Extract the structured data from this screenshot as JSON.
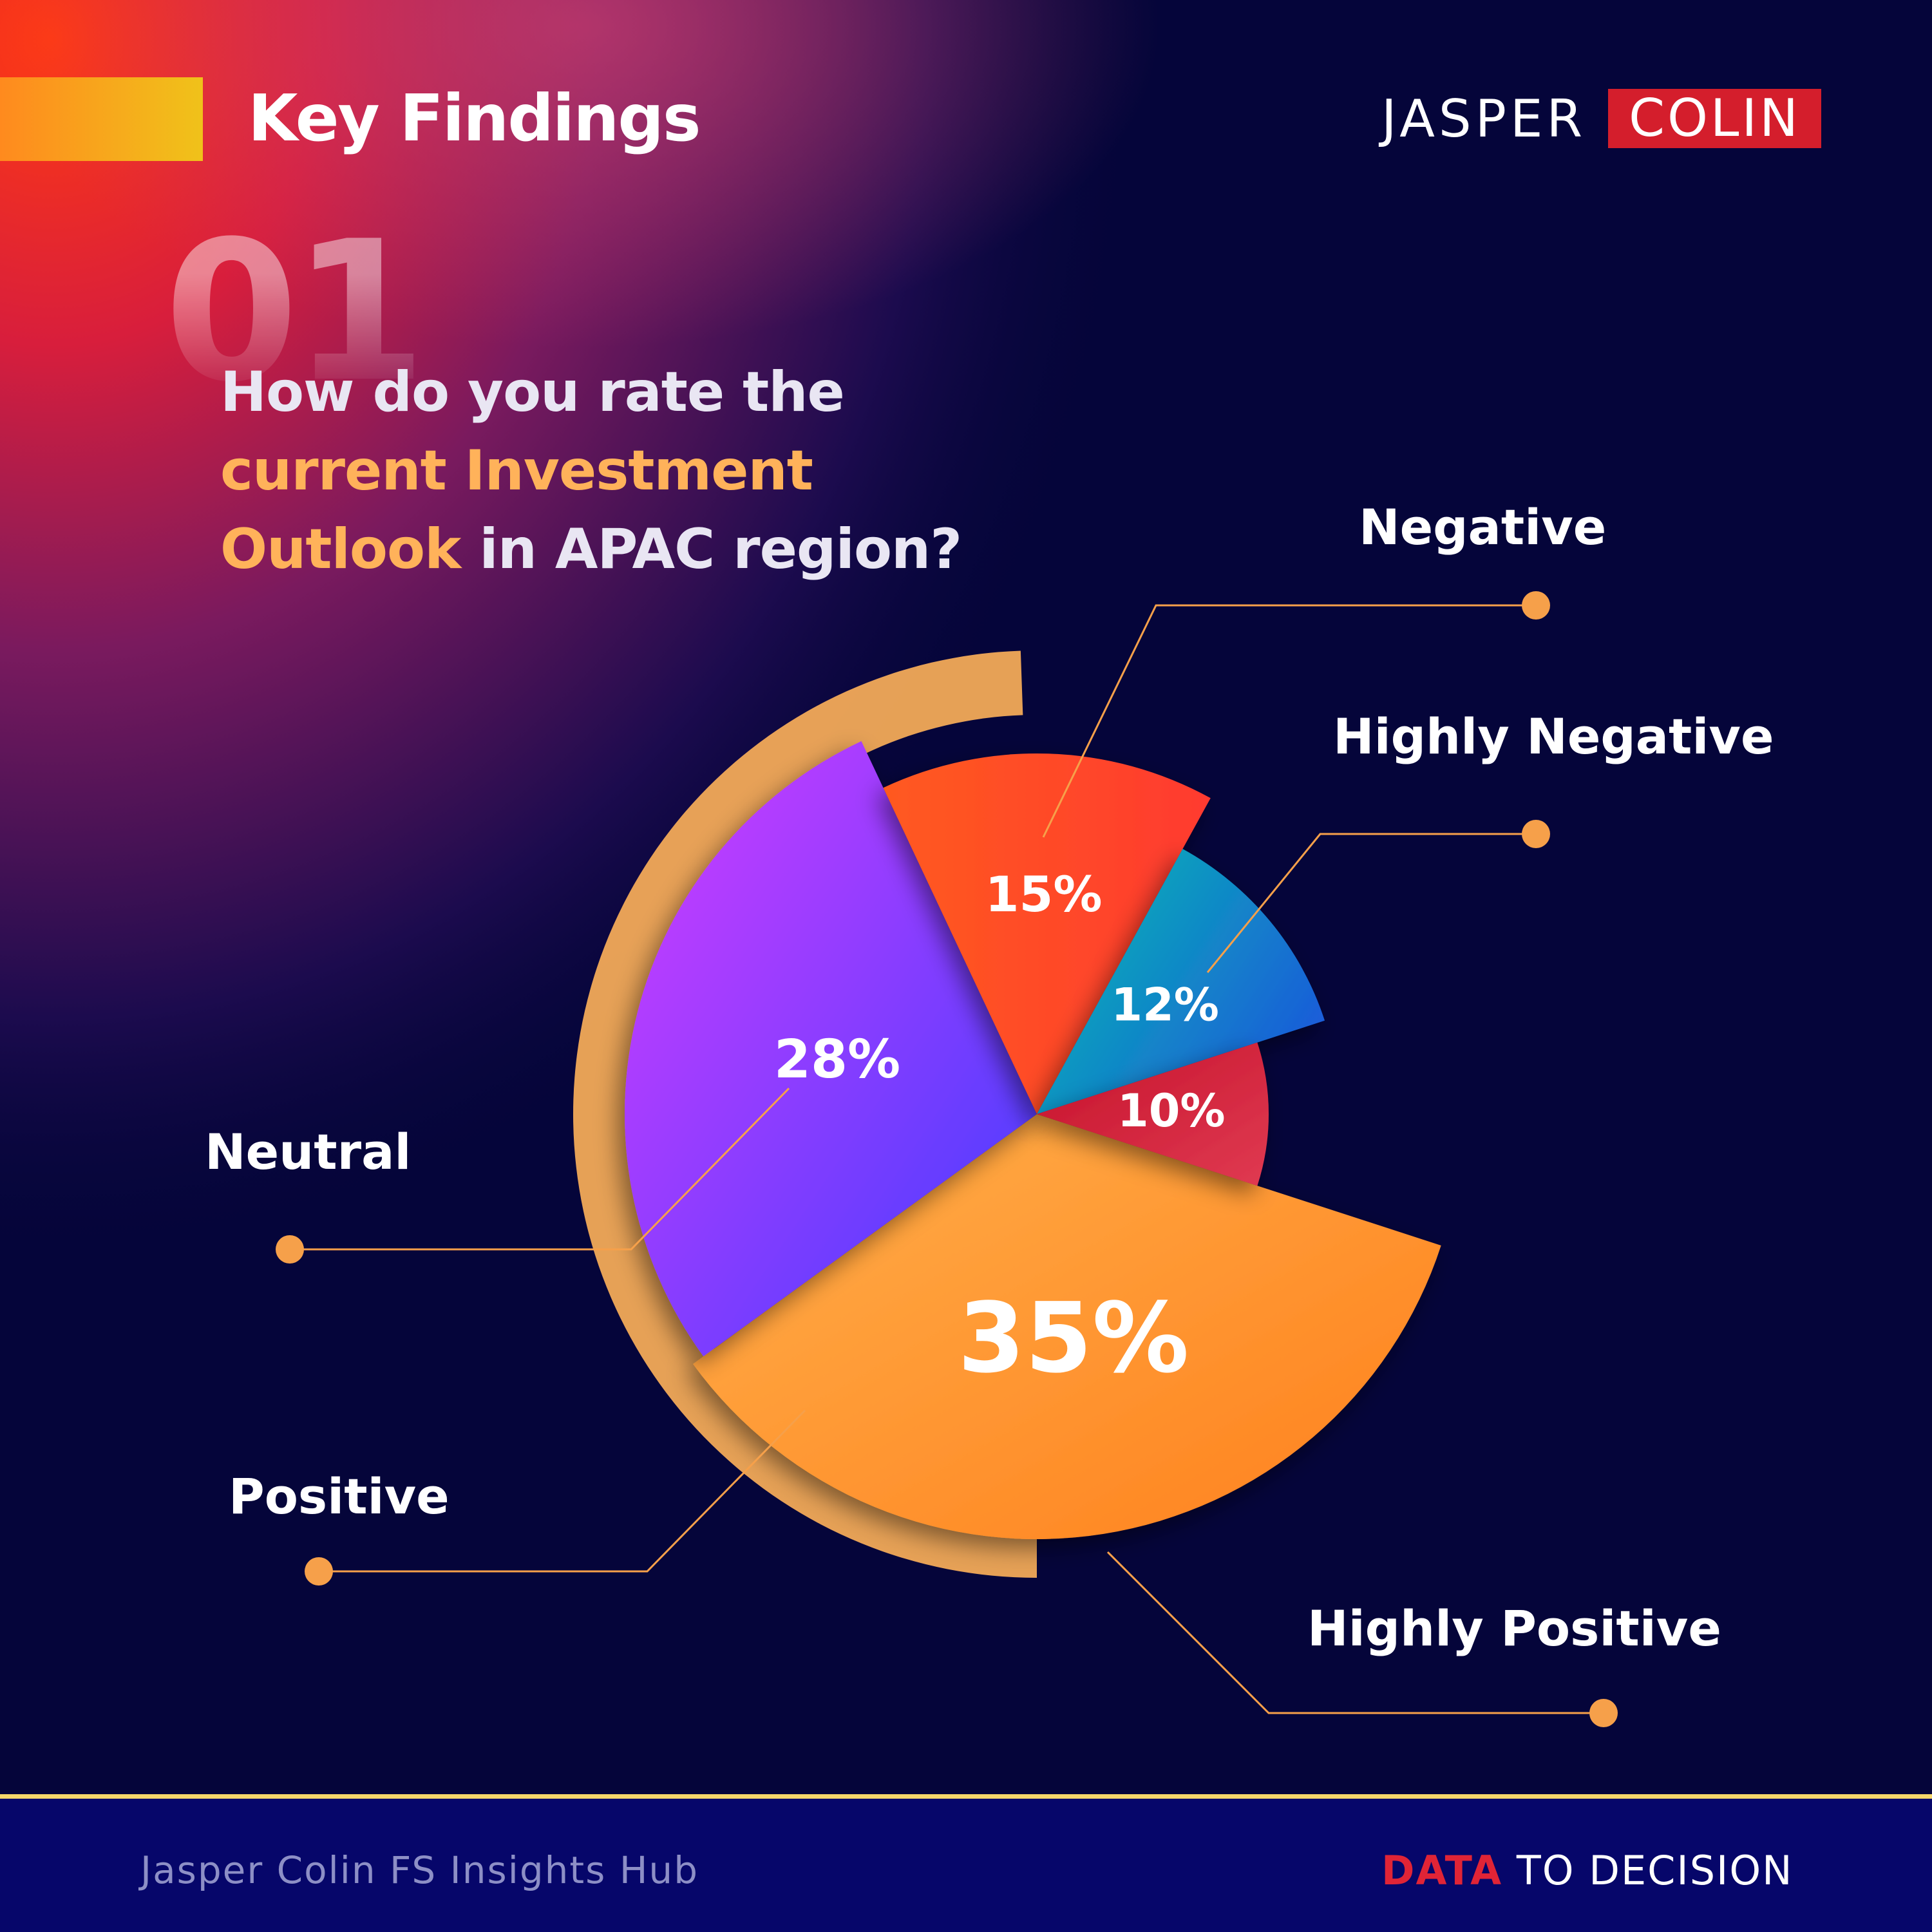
{
  "header": {
    "title": "Key Findings"
  },
  "brand": {
    "word1": "JASPER",
    "word2": "COLIN"
  },
  "question": {
    "number": "01",
    "part1": "How do you rate the ",
    "highlight": "current Investment Outlook",
    "part2": " in APAC region?"
  },
  "colors": {
    "highlight": "#ffb25a",
    "brand_red": "#d41e2c",
    "leader": "#f6a04a"
  },
  "chart_data": {
    "type": "pie",
    "title": "",
    "slices": [
      {
        "label": "Highly Positive",
        "value": 35,
        "display": "35%",
        "color": "#ff8f2b"
      },
      {
        "label": "Positive",
        "value": 28,
        "display": "28%",
        "color": "#8f3cff"
      },
      {
        "label": "Neutral",
        "value": 15,
        "display": "15%",
        "color": "#ff4a1f"
      },
      {
        "label": "Negative",
        "value": 12,
        "display": "12%",
        "color": "#0aa9c4"
      },
      {
        "label": "Highly Negative",
        "value": 10,
        "display": "10%",
        "color": "#d01f3c"
      }
    ]
  },
  "footer": {
    "left": "Jasper Colin FS Insights Hub",
    "right_highlight": "DATA",
    "right_rest": " TO DECISION"
  }
}
